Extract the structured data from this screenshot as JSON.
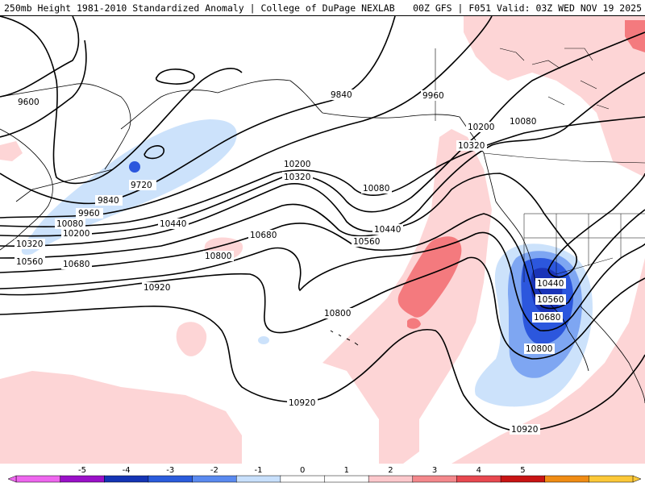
{
  "header": {
    "title_left": "250mb Height 1981-2010 Standardized Anomaly | College of DuPage NEXLAB",
    "title_right": "00Z GFS | F051 Valid: 03Z WED NOV 19 2025"
  },
  "contour_labels": {
    "c9600": "9600",
    "c9720": "9720",
    "c9840_w": "9840",
    "c9840_e": "9840",
    "c9960_w": "9960",
    "c9960_e": "9960",
    "c10080_w": "10080",
    "c10080_m": "10080",
    "c10080_ne": "10080",
    "c10200_w": "10200",
    "c10200_m": "10200",
    "c10200_e": "10200",
    "c10320_w": "10320",
    "c10320_m": "10320",
    "c10320_e": "10320",
    "c10440_w": "10440",
    "c10440_m": "10440",
    "c10440_low": "10440",
    "c10560_w": "10560",
    "c10560_m": "10560",
    "c10560_low": "10560",
    "c10680_w": "10680",
    "c10680_m": "10680",
    "c10680_low": "10680",
    "c10800_w": "10800",
    "c10800_m": "10800",
    "c10800_low": "10800",
    "c10920_w": "10920",
    "c10920_m": "10920",
    "c10920_e": "10920"
  },
  "legend": {
    "ticks": [
      "-5",
      "-4",
      "-3",
      "-2",
      "-1",
      "0",
      "1",
      "2",
      "3",
      "4",
      "5"
    ],
    "colors": [
      "#ee66ee",
      "#9a10c8",
      "#1434b4",
      "#2a5cdc",
      "#5a8af0",
      "#c8e0fc",
      "#ffffff",
      "#ffffff",
      "#fcc8cc",
      "#f4888c",
      "#e84850",
      "#c81414",
      "#f08c14",
      "#fcc838"
    ]
  },
  "colors": {
    "pos1": "#fdd5d6",
    "pos2": "#f47a7e",
    "neg1": "#cce2fb",
    "neg2": "#7ea6f2",
    "neg3": "#2c57dd",
    "neg4": "#1a34b8",
    "neg5": "#d040d0"
  }
}
